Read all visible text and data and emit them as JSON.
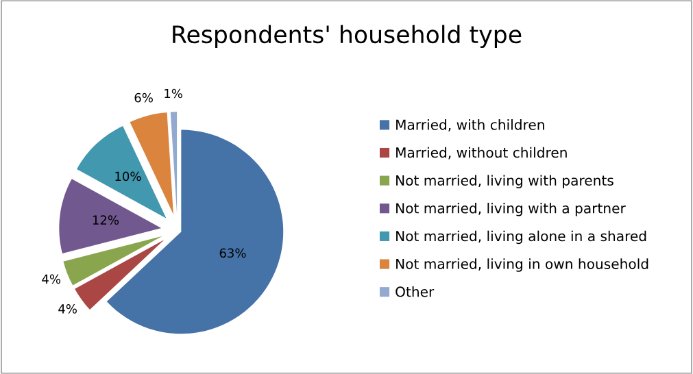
{
  "chart_data": {
    "type": "pie",
    "title": "Respondents' household type",
    "categories": [
      "Married, with children",
      "Married, without children",
      "Not married, living with parents",
      "Not married, living with a partner",
      "Not married, living alone in a shared",
      "Not married, living in own household",
      "Other"
    ],
    "values": [
      63,
      4,
      4,
      12,
      10,
      6,
      1
    ],
    "colors": [
      "#4572a7",
      "#aa4643",
      "#89a54e",
      "#71588f",
      "#4198af",
      "#db843d",
      "#93a9cf"
    ],
    "value_labels": [
      "63%",
      "4%",
      "4%",
      "12%",
      "10%",
      "6%",
      "1%"
    ],
    "legend": "right"
  }
}
